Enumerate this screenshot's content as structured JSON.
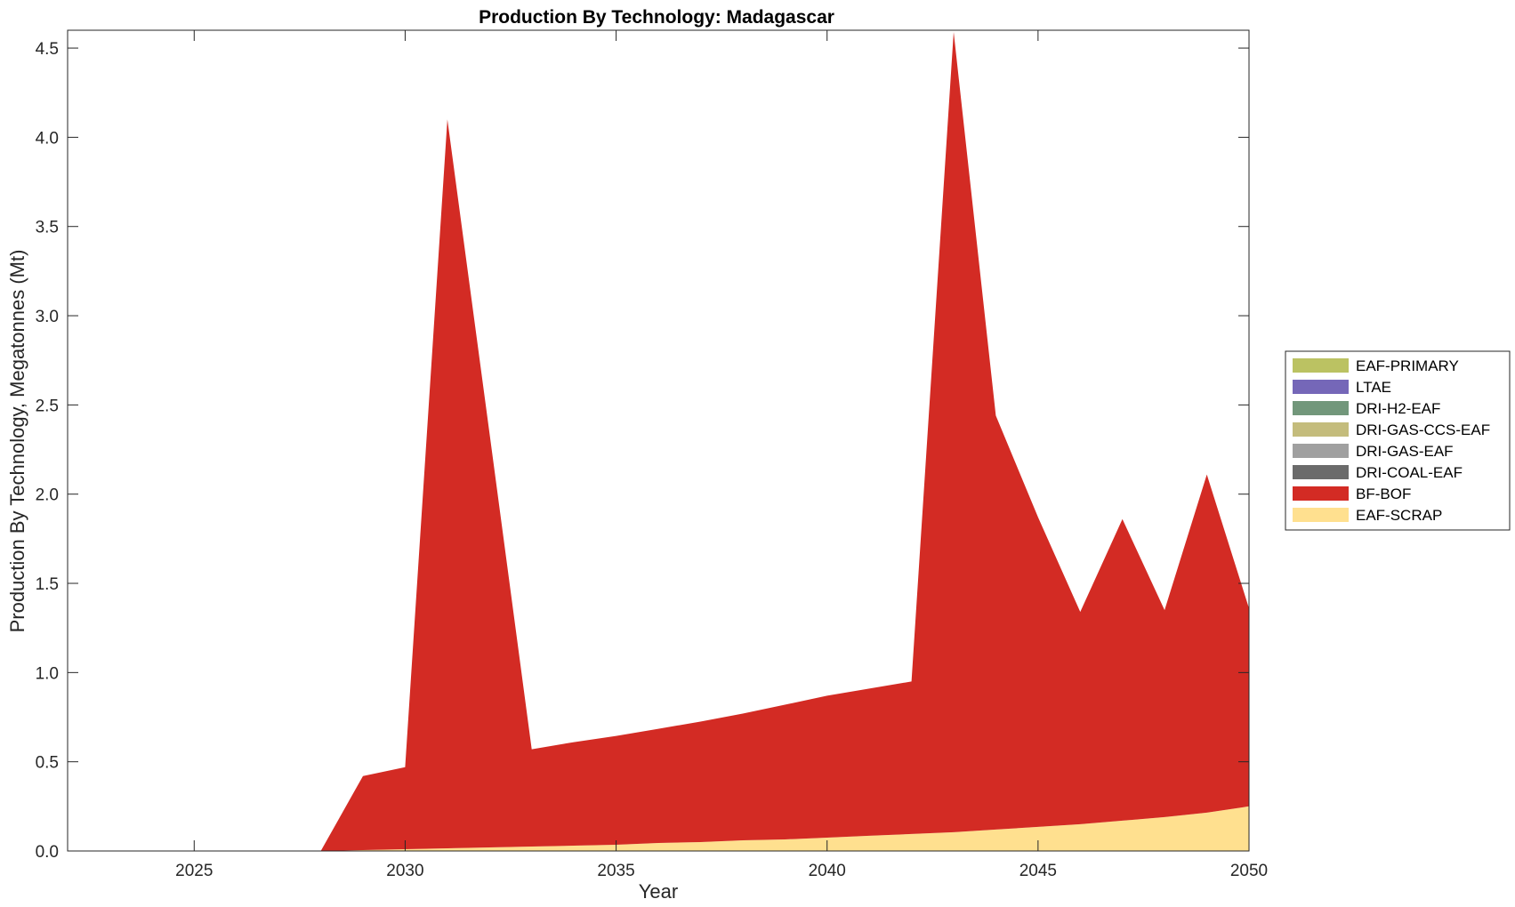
{
  "chart_data": {
    "type": "area",
    "stacked": true,
    "title": "Production By Technology: Madagascar",
    "xlabel": "Year",
    "ylabel": "Production By Technology, Megatonnes (Mt)",
    "xlim": [
      2022,
      2050
    ],
    "ylim": [
      0,
      4.6
    ],
    "x_ticks": [
      2025,
      2030,
      2035,
      2040,
      2045,
      2050
    ],
    "y_ticks": [
      0,
      0.5,
      1.0,
      1.5,
      2.0,
      2.5,
      3.0,
      3.5,
      4.0,
      4.5
    ],
    "y_tick_labels": [
      "0.0",
      "0.5",
      "1.0",
      "1.5",
      "2.0",
      "2.5",
      "3.0",
      "3.5",
      "4.0",
      "4.5"
    ],
    "grid": false,
    "legend_position": "outside-right",
    "x": [
      2022,
      2023,
      2024,
      2025,
      2026,
      2027,
      2028,
      2029,
      2030,
      2031,
      2032,
      2033,
      2034,
      2035,
      2036,
      2037,
      2038,
      2039,
      2040,
      2041,
      2042,
      2043,
      2044,
      2045,
      2046,
      2047,
      2048,
      2049,
      2050
    ],
    "series": [
      {
        "name": "EAF-SCRAP",
        "color": "#FFE08F",
        "values": [
          0,
          0,
          0,
          0,
          0,
          0,
          0,
          0.005,
          0.01,
          0.015,
          0.02,
          0.025,
          0.03,
          0.035,
          0.045,
          0.05,
          0.06,
          0.065,
          0.075,
          0.085,
          0.095,
          0.105,
          0.12,
          0.135,
          0.15,
          0.17,
          0.19,
          0.215,
          0.25
        ]
      },
      {
        "name": "BF-BOF",
        "color": "#D32B24",
        "values": [
          0,
          0,
          0,
          0,
          0,
          0,
          0,
          0.415,
          0.46,
          4.085,
          2.32,
          0.545,
          0.58,
          0.61,
          0.64,
          0.675,
          0.71,
          0.755,
          0.795,
          0.825,
          0.855,
          4.485,
          2.32,
          1.735,
          1.19,
          1.69,
          1.16,
          1.895,
          1.11
        ]
      },
      {
        "name": "DRI-COAL-EAF",
        "color": "#6B6B6B",
        "values": [
          0,
          0,
          0,
          0,
          0,
          0,
          0,
          0,
          0,
          0,
          0,
          0,
          0,
          0,
          0,
          0,
          0,
          0,
          0,
          0,
          0,
          0,
          0,
          0,
          0,
          0,
          0,
          0,
          0
        ]
      },
      {
        "name": "DRI-GAS-EAF",
        "color": "#A0A0A0",
        "values": [
          0,
          0,
          0,
          0,
          0,
          0,
          0,
          0,
          0,
          0,
          0,
          0,
          0,
          0,
          0,
          0,
          0,
          0,
          0,
          0,
          0,
          0,
          0,
          0,
          0,
          0,
          0,
          0,
          0
        ]
      },
      {
        "name": "DRI-GAS-CCS-EAF",
        "color": "#C4BC7C",
        "values": [
          0,
          0,
          0,
          0,
          0,
          0,
          0,
          0,
          0,
          0,
          0,
          0,
          0,
          0,
          0,
          0,
          0,
          0,
          0,
          0,
          0,
          0,
          0,
          0,
          0,
          0,
          0,
          0,
          0
        ]
      },
      {
        "name": "DRI-H2-EAF",
        "color": "#72977B",
        "values": [
          0,
          0,
          0,
          0,
          0,
          0,
          0,
          0,
          0,
          0,
          0,
          0,
          0,
          0,
          0,
          0,
          0,
          0,
          0,
          0,
          0,
          0,
          0,
          0,
          0,
          0,
          0,
          0,
          0
        ]
      },
      {
        "name": "LTAE",
        "color": "#7567B8",
        "values": [
          0,
          0,
          0,
          0,
          0,
          0,
          0,
          0,
          0,
          0,
          0,
          0,
          0,
          0,
          0,
          0,
          0,
          0,
          0,
          0,
          0,
          0,
          0,
          0,
          0,
          0,
          0,
          0,
          0
        ]
      },
      {
        "name": "EAF-PRIMARY",
        "color": "#BBC262",
        "values": [
          0,
          0,
          0,
          0,
          0,
          0,
          0,
          0,
          0,
          0,
          0,
          0,
          0,
          0,
          0,
          0,
          0,
          0,
          0,
          0,
          0,
          0,
          0,
          0,
          0,
          0,
          0,
          0,
          0
        ]
      }
    ],
    "legend_order": [
      "EAF-PRIMARY",
      "LTAE",
      "DRI-H2-EAF",
      "DRI-GAS-CCS-EAF",
      "DRI-GAS-EAF",
      "DRI-COAL-EAF",
      "BF-BOF",
      "EAF-SCRAP"
    ]
  }
}
